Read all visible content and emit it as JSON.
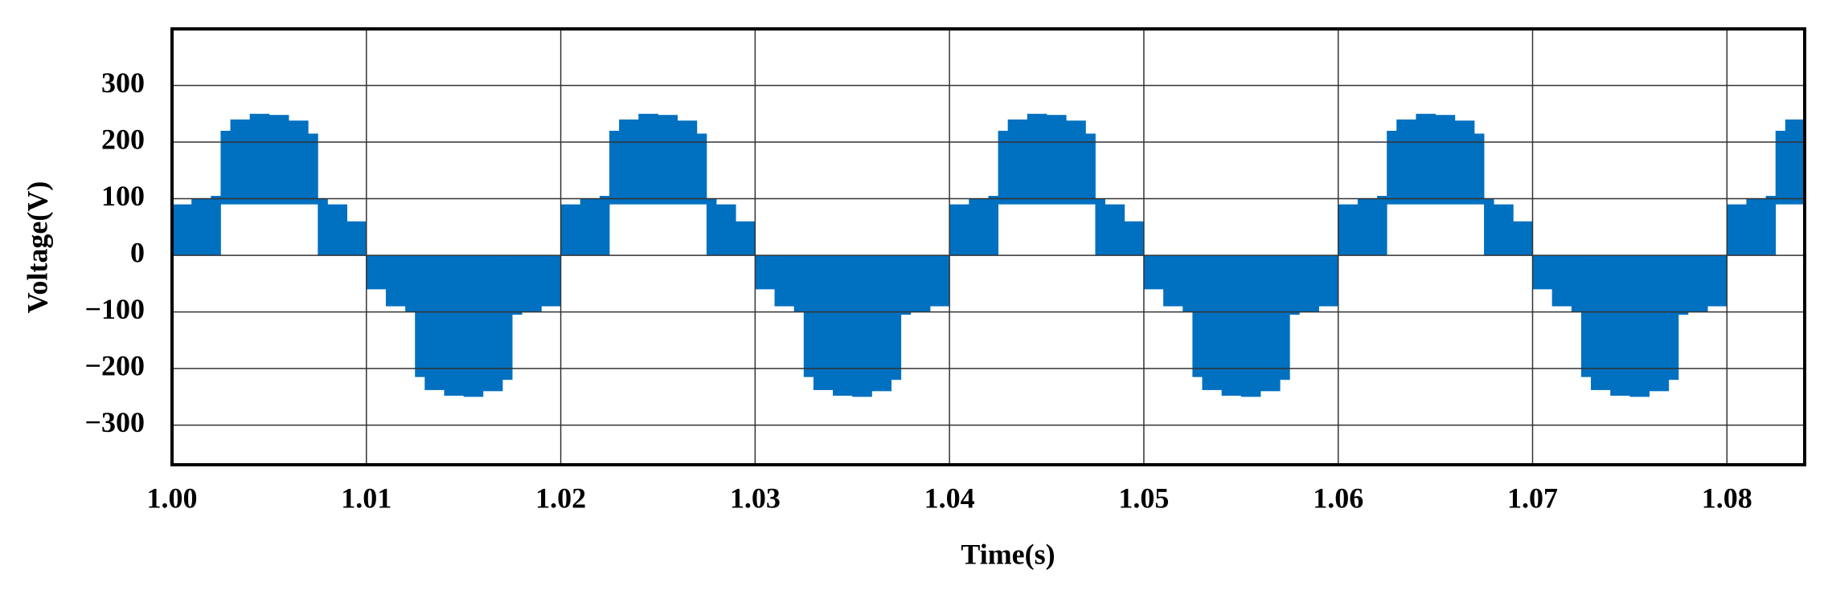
{
  "chart_data": {
    "type": "band",
    "x_label": "Time(s)",
    "y_label": "Voltage(V)",
    "color": "#0070c0",
    "grid": true,
    "xlim": [
      1.0,
      1.084
    ],
    "ylim": [
      -370,
      400
    ],
    "xticks": [
      {
        "value": 1.0,
        "label": "1.00"
      },
      1.01,
      1.02,
      1.03,
      1.04,
      1.05,
      1.06,
      1.07,
      1.08
    ],
    "yticks": [
      {
        "value": -300,
        "label": "−300"
      },
      {
        "value": -200,
        "label": "−200"
      },
      {
        "value": -100,
        "label": "−100"
      },
      0,
      100,
      200,
      300
    ],
    "bins": [
      1.0,
      1.001,
      1.002,
      1.0025,
      1.003,
      1.004,
      1.005,
      1.006,
      1.007,
      1.0075,
      1.008,
      1.009,
      1.01,
      1.011,
      1.012,
      1.0125,
      1.013,
      1.014,
      1.015,
      1.016,
      1.017,
      1.0175,
      1.018,
      1.019,
      1.02,
      1.021,
      1.022,
      1.0225,
      1.023,
      1.024,
      1.025,
      1.026,
      1.027,
      1.0275,
      1.028,
      1.029,
      1.03,
      1.031,
      1.032,
      1.0325,
      1.033,
      1.034,
      1.035,
      1.036,
      1.037,
      1.0375,
      1.038,
      1.039,
      1.04,
      1.041,
      1.042,
      1.0425,
      1.043,
      1.044,
      1.045,
      1.046,
      1.047,
      1.0475,
      1.048,
      1.049,
      1.05,
      1.051,
      1.052,
      1.0525,
      1.053,
      1.054,
      1.055,
      1.056,
      1.057,
      1.0575,
      1.058,
      1.059,
      1.06,
      1.061,
      1.062,
      1.0625,
      1.063,
      1.064,
      1.065,
      1.066,
      1.067,
      1.0675,
      1.068,
      1.069,
      1.07,
      1.071,
      1.072,
      1.0725,
      1.073,
      1.074,
      1.075,
      1.076,
      1.077,
      1.0775,
      1.078,
      1.079,
      1.08,
      1.081,
      1.082,
      1.0825,
      1.083,
      1.084
    ],
    "upper": [
      90,
      100,
      105,
      220,
      240,
      250,
      248,
      238,
      215,
      100,
      90,
      60,
      0,
      0,
      0,
      0,
      0,
      0,
      0,
      0,
      0,
      0,
      0,
      0,
      90,
      100,
      105,
      220,
      240,
      250,
      248,
      238,
      215,
      100,
      90,
      60,
      0,
      0,
      0,
      0,
      0,
      0,
      0,
      0,
      0,
      0,
      0,
      0,
      90,
      100,
      105,
      220,
      240,
      250,
      248,
      238,
      215,
      100,
      90,
      60,
      0,
      0,
      0,
      0,
      0,
      0,
      0,
      0,
      0,
      0,
      0,
      0,
      90,
      100,
      105,
      220,
      240,
      250,
      248,
      238,
      215,
      100,
      90,
      60,
      0,
      0,
      0,
      0,
      0,
      0,
      0,
      0,
      0,
      0,
      0,
      0,
      90,
      100,
      105,
      220,
      240
    ],
    "lower": [
      0,
      0,
      0,
      90,
      90,
      90,
      90,
      90,
      90,
      0,
      0,
      0,
      -60,
      -90,
      -100,
      -215,
      -238,
      -248,
      -250,
      -240,
      -220,
      -105,
      -100,
      -90,
      0,
      0,
      0,
      90,
      90,
      90,
      90,
      90,
      90,
      0,
      0,
      0,
      -60,
      -90,
      -100,
      -215,
      -238,
      -248,
      -250,
      -240,
      -220,
      -105,
      -100,
      -90,
      0,
      0,
      0,
      90,
      90,
      90,
      90,
      90,
      90,
      0,
      0,
      0,
      -60,
      -90,
      -100,
      -215,
      -238,
      -248,
      -250,
      -240,
      -220,
      -105,
      -100,
      -90,
      0,
      0,
      0,
      90,
      90,
      90,
      90,
      90,
      90,
      0,
      0,
      0,
      -60,
      -90,
      -100,
      -215,
      -238,
      -248,
      -250,
      -240,
      -220,
      -105,
      -100,
      -90,
      0,
      0,
      0,
      90,
      90
    ]
  }
}
